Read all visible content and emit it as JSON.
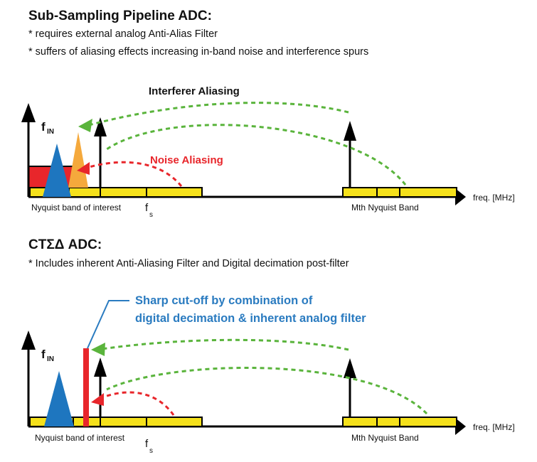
{
  "section1": {
    "title": "Sub-Sampling Pipeline ADC:",
    "bullets": [
      "* requires external analog Anti-Alias Filter",
      "* suffers of aliasing effects increasing in-band noise and interference spurs"
    ],
    "interferer_label": "Interferer Aliasing",
    "noise_label": "Noise Aliasing",
    "y_axis_label": "f",
    "y_axis_sub": "IN",
    "band1_label": "Nyquist band of interest",
    "fs_label": "f",
    "fs_sub": "s",
    "mth_band_label": "Mth Nyquist Band",
    "xaxis_label": "freq. [MHz]"
  },
  "section2": {
    "title": "CTΣΔ ADC:",
    "bullets": [
      "* Includes inherent Anti-Aliasing Filter and Digital decimation post-filter"
    ],
    "callout_line1": "Sharp cut-off by combination of",
    "callout_line2": "digital decimation & inherent analog filter",
    "y_axis_label": "f",
    "y_axis_sub": "IN",
    "band1_label": "Nyquist band of interest",
    "fs_label": "f",
    "fs_sub": "s",
    "mth_band_label": "Mth Nyquist Band",
    "xaxis_label": "freq. [MHz]"
  },
  "colors": {
    "yellow": "#f5e11b",
    "blue": "#1e76bf",
    "orange": "#f5a93c",
    "red": "#e8262b",
    "green": "#5ab43c",
    "callout_blue": "#2a7bc0",
    "black": "#000000"
  }
}
